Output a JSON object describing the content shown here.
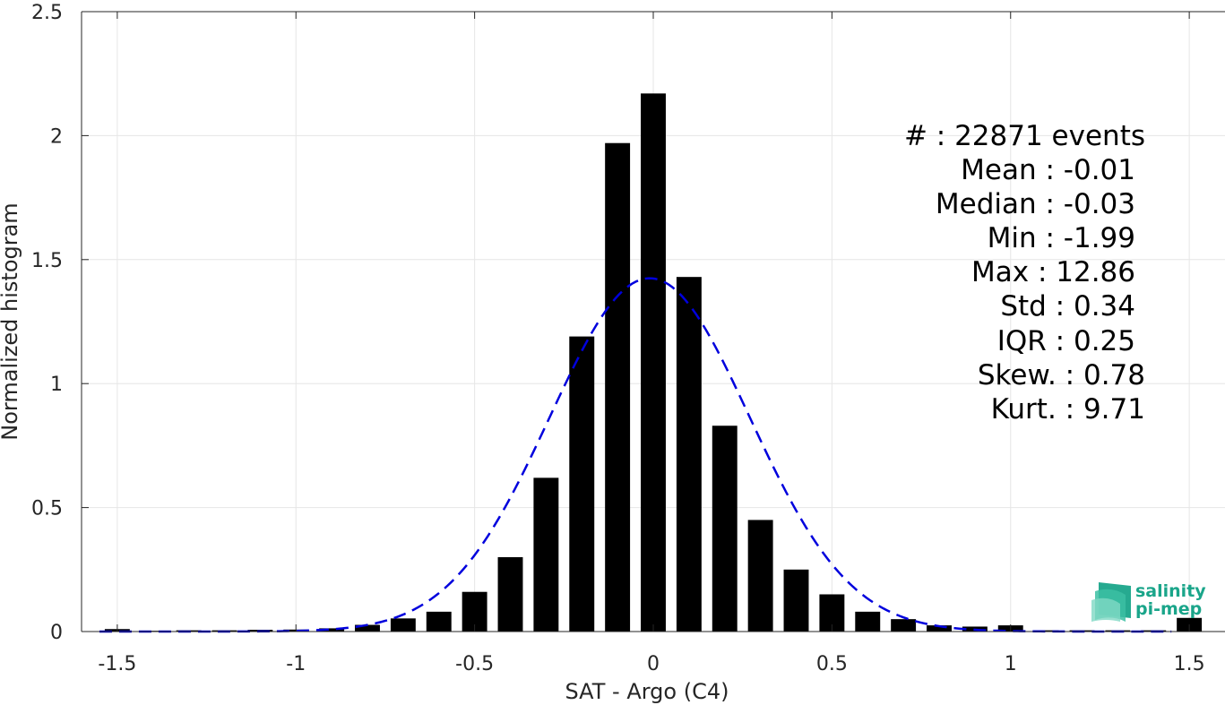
{
  "chart_data": {
    "type": "bar",
    "title": "",
    "xlabel": "SAT - Argo (C4)",
    "ylabel": "Normalized histogram",
    "xlim": [
      -1.6,
      1.6
    ],
    "ylim": [
      0,
      2.5
    ],
    "grid": true,
    "xticks": [
      -1.5,
      -1,
      -0.5,
      0,
      0.5,
      1,
      1.5
    ],
    "xtick_labels": [
      "-1.5",
      "-1",
      "-0.5",
      "0",
      "0.5",
      "1",
      "1.5"
    ],
    "yticks": [
      0,
      0.5,
      1,
      1.5,
      2,
      2.5
    ],
    "ytick_labels": [
      "0",
      "0.5",
      "1",
      "1.5",
      "2",
      "2.5"
    ],
    "bar_width": 0.07,
    "bar_color": "#000000",
    "series": [
      {
        "x": [
          -1.5,
          -1.4,
          -1.3,
          -1.2,
          -1.1,
          -1.0,
          -0.9,
          -0.8,
          -0.7,
          -0.6,
          -0.5,
          -0.4,
          -0.3,
          -0.2,
          -0.1,
          0.0,
          0.1,
          0.2,
          0.3,
          0.4,
          0.5,
          0.6,
          0.7,
          0.8,
          0.9,
          1.0,
          1.1,
          1.2,
          1.3,
          1.4,
          1.5
        ],
        "values": [
          0.01,
          0.003,
          0.005,
          0.005,
          0.007,
          0.008,
          0.013,
          0.027,
          0.053,
          0.08,
          0.16,
          0.3,
          0.62,
          1.19,
          1.97,
          2.17,
          1.43,
          0.83,
          0.45,
          0.25,
          0.15,
          0.08,
          0.05,
          0.025,
          0.02,
          0.025,
          0.005,
          0.005,
          0.005,
          0.005,
          0.055
        ]
      }
    ],
    "fit": {
      "type": "normal",
      "mean": -0.01,
      "std": 0.28,
      "color": "#0000dd",
      "style": "dashed"
    },
    "annotations": [
      "#  : 22871 events",
      "Mean : -0.01",
      "Median : -0.03",
      "Min : -1.99",
      "Max : 12.86",
      "Std : 0.34",
      "IQR : 0.25",
      "Skew. : 0.78",
      "Kurt. : 9.71"
    ]
  },
  "logo": {
    "line1": "salinity",
    "line2": "pi-mep",
    "color": "#1aa58a"
  }
}
